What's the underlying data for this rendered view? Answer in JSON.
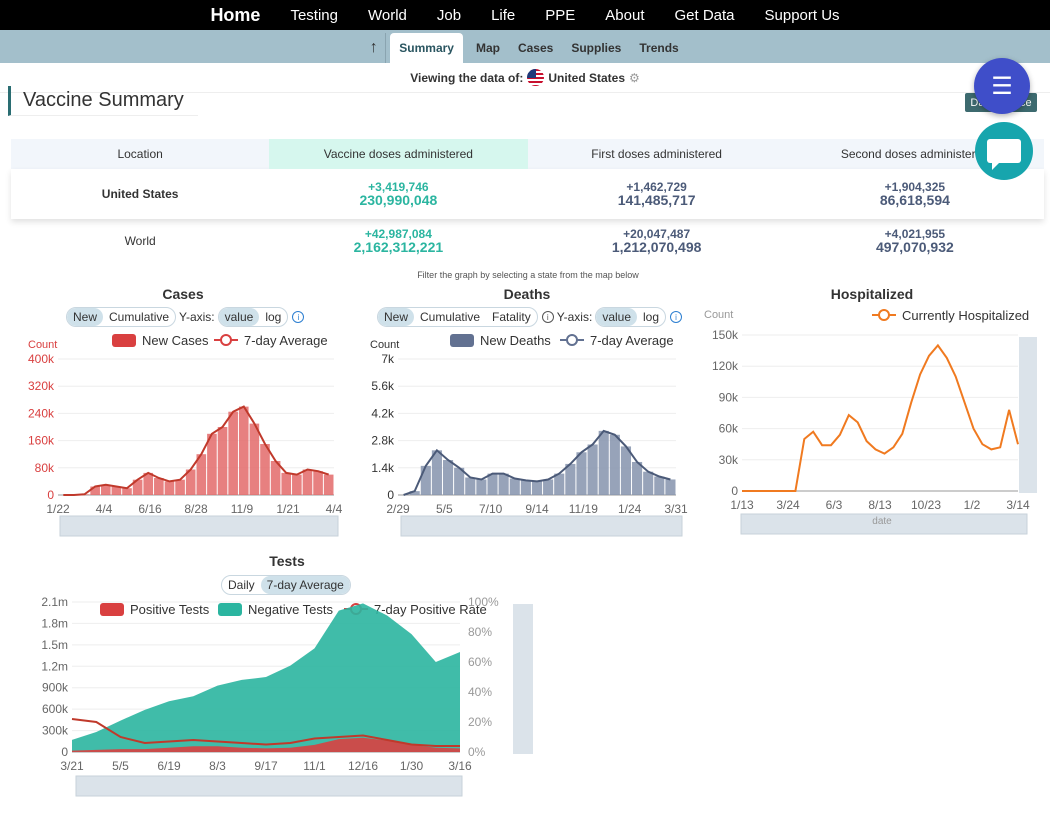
{
  "topnav": [
    "Home",
    "Testing",
    "World",
    "Job",
    "Life",
    "PPE",
    "About",
    "Get Data",
    "Support Us"
  ],
  "subnav": {
    "up_icon": "arrow-up-icon",
    "tabs": [
      "Summary",
      "Map",
      "Cases",
      "Supplies",
      "Trends"
    ],
    "active": "Summary"
  },
  "viewing": {
    "label": "Viewing the data of:",
    "location": "United States"
  },
  "section": {
    "title": "Vaccine Summary",
    "data_button": "Data Source"
  },
  "vaccine_table": {
    "headers": [
      "Location",
      "Vaccine doses administered",
      "First doses administered",
      "Second doses administered"
    ],
    "rows": [
      {
        "location": "United States",
        "doses_delta": "+3,419,746",
        "doses_total": "230,990,048",
        "first_delta": "+1,462,729",
        "first_total": "141,485,717",
        "second_delta": "+1,904,325",
        "second_total": "86,618,594"
      },
      {
        "location": "World",
        "doses_delta": "+42,987,084",
        "doses_total": "2,162,312,221",
        "first_delta": "+20,047,487",
        "first_total": "1,212,070,498",
        "second_delta": "+4,021,955",
        "second_total": "497,070,932"
      }
    ]
  },
  "filter_note": "Filter the graph by selecting a state from the map below",
  "colors": {
    "cases": "#d94040",
    "deaths": "#627191",
    "hosp": "#f07a20",
    "negative": "#2bb5a0",
    "teal": "#2bb5a0"
  },
  "cases_ui": {
    "title": "Cases",
    "toggles": [
      "New",
      "Cumulative"
    ],
    "yaxis_label": "Y-axis:",
    "scales": [
      "value",
      "log"
    ],
    "legend": [
      "New Cases",
      "7-day Average"
    ],
    "count_label": "Count"
  },
  "deaths_ui": {
    "title": "Deaths",
    "toggles": [
      "New",
      "Cumulative",
      "Fatality"
    ],
    "yaxis_label": "Y-axis:",
    "scales": [
      "value",
      "log"
    ],
    "legend": [
      "New Deaths",
      "7-day Average"
    ],
    "count_label": "Count"
  },
  "hosp_ui": {
    "title": "Hospitalized",
    "legend": [
      "Currently Hospitalized"
    ],
    "count_label": "Count",
    "x_label": "date"
  },
  "tests_ui": {
    "title": "Tests",
    "toggles": [
      "Daily",
      "7-day Average"
    ],
    "legend": [
      "Positive Tests",
      "Negative Tests",
      "7-day Positive Rate"
    ]
  },
  "chart_data": [
    {
      "type": "bar",
      "title": "Cases",
      "ylabel": "Count",
      "x_ticks": [
        "1/22",
        "4/4",
        "6/16",
        "8/28",
        "11/9",
        "1/21",
        "4/4"
      ],
      "y_ticks": [
        "0",
        "80k",
        "160k",
        "240k",
        "320k",
        "400k"
      ],
      "ylim": [
        0,
        400000
      ],
      "series": [
        {
          "name": "New Cases",
          "values": [
            0,
            0,
            2000,
            25000,
            30000,
            25000,
            20000,
            45000,
            65000,
            50000,
            40000,
            45000,
            75000,
            120000,
            180000,
            200000,
            245000,
            260000,
            210000,
            150000,
            100000,
            65000,
            60000,
            75000,
            70000,
            60000
          ]
        },
        {
          "name": "7-day Average",
          "values": [
            0,
            0,
            2000,
            25000,
            30000,
            25000,
            20000,
            45000,
            65000,
            50000,
            40000,
            45000,
            75000,
            120000,
            180000,
            200000,
            245000,
            260000,
            210000,
            150000,
            100000,
            65000,
            60000,
            75000,
            70000,
            60000
          ]
        }
      ]
    },
    {
      "type": "bar",
      "title": "Deaths",
      "ylabel": "Count",
      "x_ticks": [
        "2/29",
        "5/5",
        "7/10",
        "9/14",
        "11/19",
        "1/24",
        "3/31"
      ],
      "y_ticks": [
        "0",
        "1.4k",
        "2.8k",
        "4.2k",
        "5.6k",
        "7k"
      ],
      "ylim": [
        0,
        7000
      ],
      "series": [
        {
          "name": "New Deaths",
          "values": [
            0,
            200,
            1500,
            2300,
            1800,
            1400,
            900,
            800,
            1100,
            1100,
            850,
            750,
            700,
            800,
            1100,
            1600,
            2200,
            2600,
            3300,
            3100,
            2500,
            1700,
            1200,
            950,
            800
          ]
        },
        {
          "name": "7-day Average",
          "values": [
            0,
            200,
            1500,
            2300,
            1800,
            1400,
            900,
            800,
            1100,
            1100,
            850,
            750,
            700,
            800,
            1100,
            1600,
            2200,
            2600,
            3300,
            3100,
            2500,
            1700,
            1200,
            950,
            800
          ]
        }
      ]
    },
    {
      "type": "line",
      "title": "Hospitalized",
      "ylabel": "Count",
      "xlabel": "date",
      "x_ticks": [
        "1/13",
        "3/24",
        "6/3",
        "8/13",
        "10/23",
        "1/2",
        "3/14"
      ],
      "y_ticks": [
        "0",
        "30k",
        "60k",
        "90k",
        "120k",
        "150k"
      ],
      "ylim": [
        0,
        150000
      ],
      "series": [
        {
          "name": "Currently Hospitalized",
          "values": [
            0,
            0,
            0,
            0,
            0,
            0,
            0,
            50000,
            57000,
            44000,
            44000,
            54000,
            73000,
            66000,
            48000,
            40000,
            36000,
            42000,
            55000,
            85000,
            112000,
            130000,
            140000,
            128000,
            110000,
            85000,
            60000,
            45000,
            40000,
            42000,
            78000,
            45000
          ]
        }
      ]
    },
    {
      "type": "area",
      "title": "Tests",
      "x_ticks": [
        "3/21",
        "5/5",
        "6/19",
        "8/3",
        "9/17",
        "11/1",
        "12/16",
        "1/30",
        "3/16"
      ],
      "y_ticks": [
        "0",
        "300k",
        "600k",
        "900k",
        "1.2m",
        "1.5m",
        "1.8m",
        "2.1m"
      ],
      "ylim": [
        0,
        2100000
      ],
      "y2_ticks": [
        "0%",
        "20%",
        "40%",
        "60%",
        "80%",
        "100%"
      ],
      "y2lim": [
        0,
        100
      ],
      "series": [
        {
          "name": "Positive Tests",
          "values": [
            20000,
            30000,
            40000,
            40000,
            60000,
            80000,
            80000,
            60000,
            50000,
            60000,
            100000,
            180000,
            200000,
            160000,
            100000,
            60000,
            50000
          ]
        },
        {
          "name": "Negative Tests",
          "values": [
            150000,
            250000,
            400000,
            550000,
            650000,
            700000,
            850000,
            950000,
            1000000,
            1150000,
            1350000,
            1800000,
            1880000,
            1750000,
            1550000,
            1200000,
            1350000
          ]
        },
        {
          "name": "7-day Positive Rate",
          "values": [
            22,
            20,
            10,
            6,
            7,
            8,
            7,
            6,
            5,
            6,
            9,
            10,
            11,
            8,
            5,
            4,
            4
          ]
        }
      ]
    }
  ]
}
